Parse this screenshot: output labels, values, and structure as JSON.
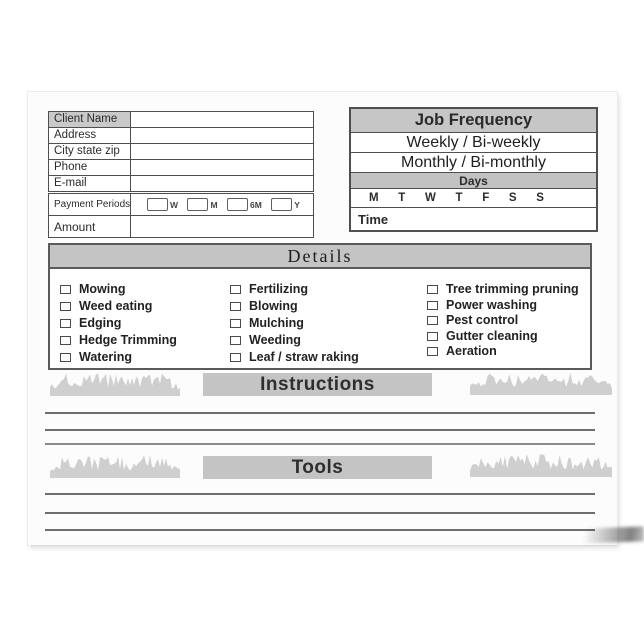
{
  "colors": {
    "page_bg": "#fcfcfc",
    "header_fill": "#c6c6c6",
    "band_fill": "#c2c2c2",
    "label_cell_fill": "#c9c9c9",
    "bar_fill": "#c4c4c4",
    "grass_fill": "#cfcfcf",
    "text_dark": "#2b2b2b"
  },
  "client_info": {
    "rows": [
      {
        "label": "Client Name",
        "value": ""
      },
      {
        "label": "Address",
        "value": ""
      },
      {
        "label": "City state zip",
        "value": ""
      },
      {
        "label": "Phone",
        "value": ""
      },
      {
        "label": "E-mail",
        "value": ""
      }
    ]
  },
  "payment": {
    "periods_label": "Payment Periods",
    "options": [
      {
        "label": "W"
      },
      {
        "label": "M"
      },
      {
        "label": "6M"
      },
      {
        "label": "Y"
      }
    ],
    "amount_label": "Amount",
    "amount_value": ""
  },
  "job_frequency": {
    "title": "Job Frequency",
    "weekly_option": "Weekly / Bi-weekly",
    "monthly_option": "Monthly / Bi-monthly",
    "days_label": "Days",
    "day_letters": [
      "M",
      "T",
      "W",
      "T",
      "F",
      "S",
      "S"
    ],
    "time_label": "Time",
    "time_value": ""
  },
  "details": {
    "title": "Details",
    "column1": [
      "Mowing",
      "Weed eating",
      "Edging",
      "Hedge Trimming",
      "Watering"
    ],
    "column2": [
      "Fertilizing",
      "Blowing",
      "Mulching",
      "Weeding",
      "Leaf / straw raking"
    ],
    "column3": [
      "Tree trimming pruning",
      "Power washing",
      "Pest control",
      "Gutter cleaning",
      "Aeration"
    ]
  },
  "instructions": {
    "title": "Instructions"
  },
  "tools": {
    "title": "Tools"
  }
}
